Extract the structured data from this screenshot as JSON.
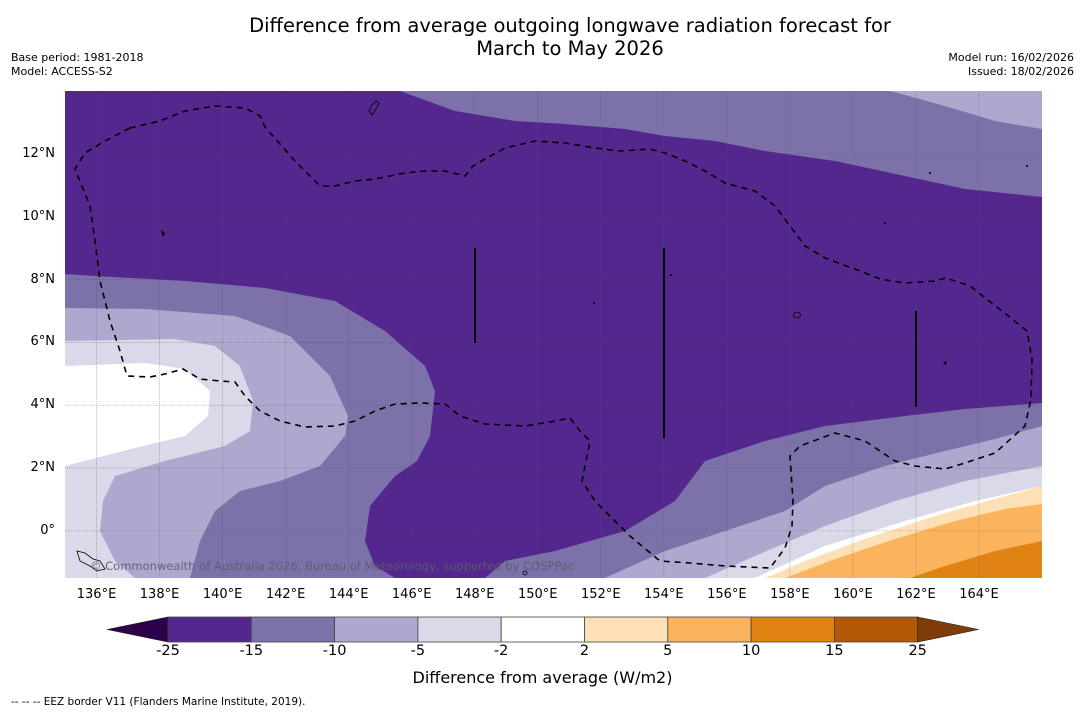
{
  "header": {
    "title_line1": "Difference from average outgoing longwave radiation forecast for",
    "title_line2": "March to May 2026",
    "base_period": "Base period: 1981-2018",
    "model": "Model: ACCESS-S2",
    "model_run": "Model run: 16/02/2026",
    "issued": "Issued: 18/02/2026"
  },
  "map": {
    "copyright": "© Commonwealth of Australia 2026, Bureau of Meteorology, supported by COSPPac",
    "extent": {
      "lon_min": 135,
      "lon_max": 166,
      "lat_min": -1.5,
      "lat_max": 14
    },
    "lat_labels": [
      {
        "lat": 12,
        "label": "12°N"
      },
      {
        "lat": 10,
        "label": "10°N"
      },
      {
        "lat": 8,
        "label": "8°N"
      },
      {
        "lat": 6,
        "label": "6°N"
      },
      {
        "lat": 4,
        "label": "4°N"
      },
      {
        "lat": 2,
        "label": "2°N"
      },
      {
        "lat": 0,
        "label": "0°"
      }
    ],
    "lon_labels": [
      {
        "lon": 136,
        "label": "136°E"
      },
      {
        "lon": 138,
        "label": "138°E"
      },
      {
        "lon": 140,
        "label": "140°E"
      },
      {
        "lon": 142,
        "label": "142°E"
      },
      {
        "lon": 144,
        "label": "144°E"
      },
      {
        "lon": 146,
        "label": "146°E"
      },
      {
        "lon": 148,
        "label": "148°E"
      },
      {
        "lon": 150,
        "label": "150°E"
      },
      {
        "lon": 152,
        "label": "152°E"
      },
      {
        "lon": 154,
        "label": "154°E"
      },
      {
        "lon": 156,
        "label": "156°E"
      },
      {
        "lon": 158,
        "label": "158°E"
      },
      {
        "lon": 160,
        "label": "160°E"
      },
      {
        "lon": 162,
        "label": "162°E"
      },
      {
        "lon": 164,
        "label": "164°E"
      }
    ],
    "regions": [
      {
        "name": "deep-negative-band",
        "class": "-25 to -15",
        "color": "#54278f"
      },
      {
        "name": "negative-15-10",
        "class": "-15 to -10",
        "color": "#7d71aa"
      },
      {
        "name": "negative-10-5",
        "class": "-10 to -5",
        "color": "#aea8cf"
      },
      {
        "name": "negative-5-2",
        "class": "-5 to -2",
        "color": "#d9d9ea"
      },
      {
        "name": "near-average",
        "class": "-2 to 2",
        "color": "#ffffff"
      },
      {
        "name": "positive-2-5",
        "class": "2 to 5",
        "color": "#fee0b6"
      },
      {
        "name": "positive-5-10",
        "class": "5 to 10",
        "color": "#fbb35e"
      },
      {
        "name": "positive-10-15",
        "class": "10 to 15",
        "color": "#e08214"
      }
    ]
  },
  "colorbar": {
    "label": "Difference from average (W/m2)",
    "under_color": "#2d004b",
    "over_color": "#7f3b08",
    "bins": [
      {
        "from": -25,
        "to": -15,
        "color": "#54278f"
      },
      {
        "from": -15,
        "to": -10,
        "color": "#7d71aa"
      },
      {
        "from": -10,
        "to": -5,
        "color": "#aea8cf"
      },
      {
        "from": -5,
        "to": -2,
        "color": "#d9d9ea"
      },
      {
        "from": -2,
        "to": 2,
        "color": "#ffffff"
      },
      {
        "from": 2,
        "to": 5,
        "color": "#fee0b6"
      },
      {
        "from": 5,
        "to": 10,
        "color": "#fbb35e"
      },
      {
        "from": 10,
        "to": 15,
        "color": "#e08214"
      },
      {
        "from": 15,
        "to": 25,
        "color": "#b35806"
      }
    ],
    "ticks": [
      "-25",
      "-15",
      "-10",
      "-5",
      "-2",
      "2",
      "5",
      "10",
      "15",
      "25"
    ]
  },
  "footer": {
    "legend_text": "--  --  -- EEZ border V11 (Flanders Marine Institute, 2019)."
  }
}
